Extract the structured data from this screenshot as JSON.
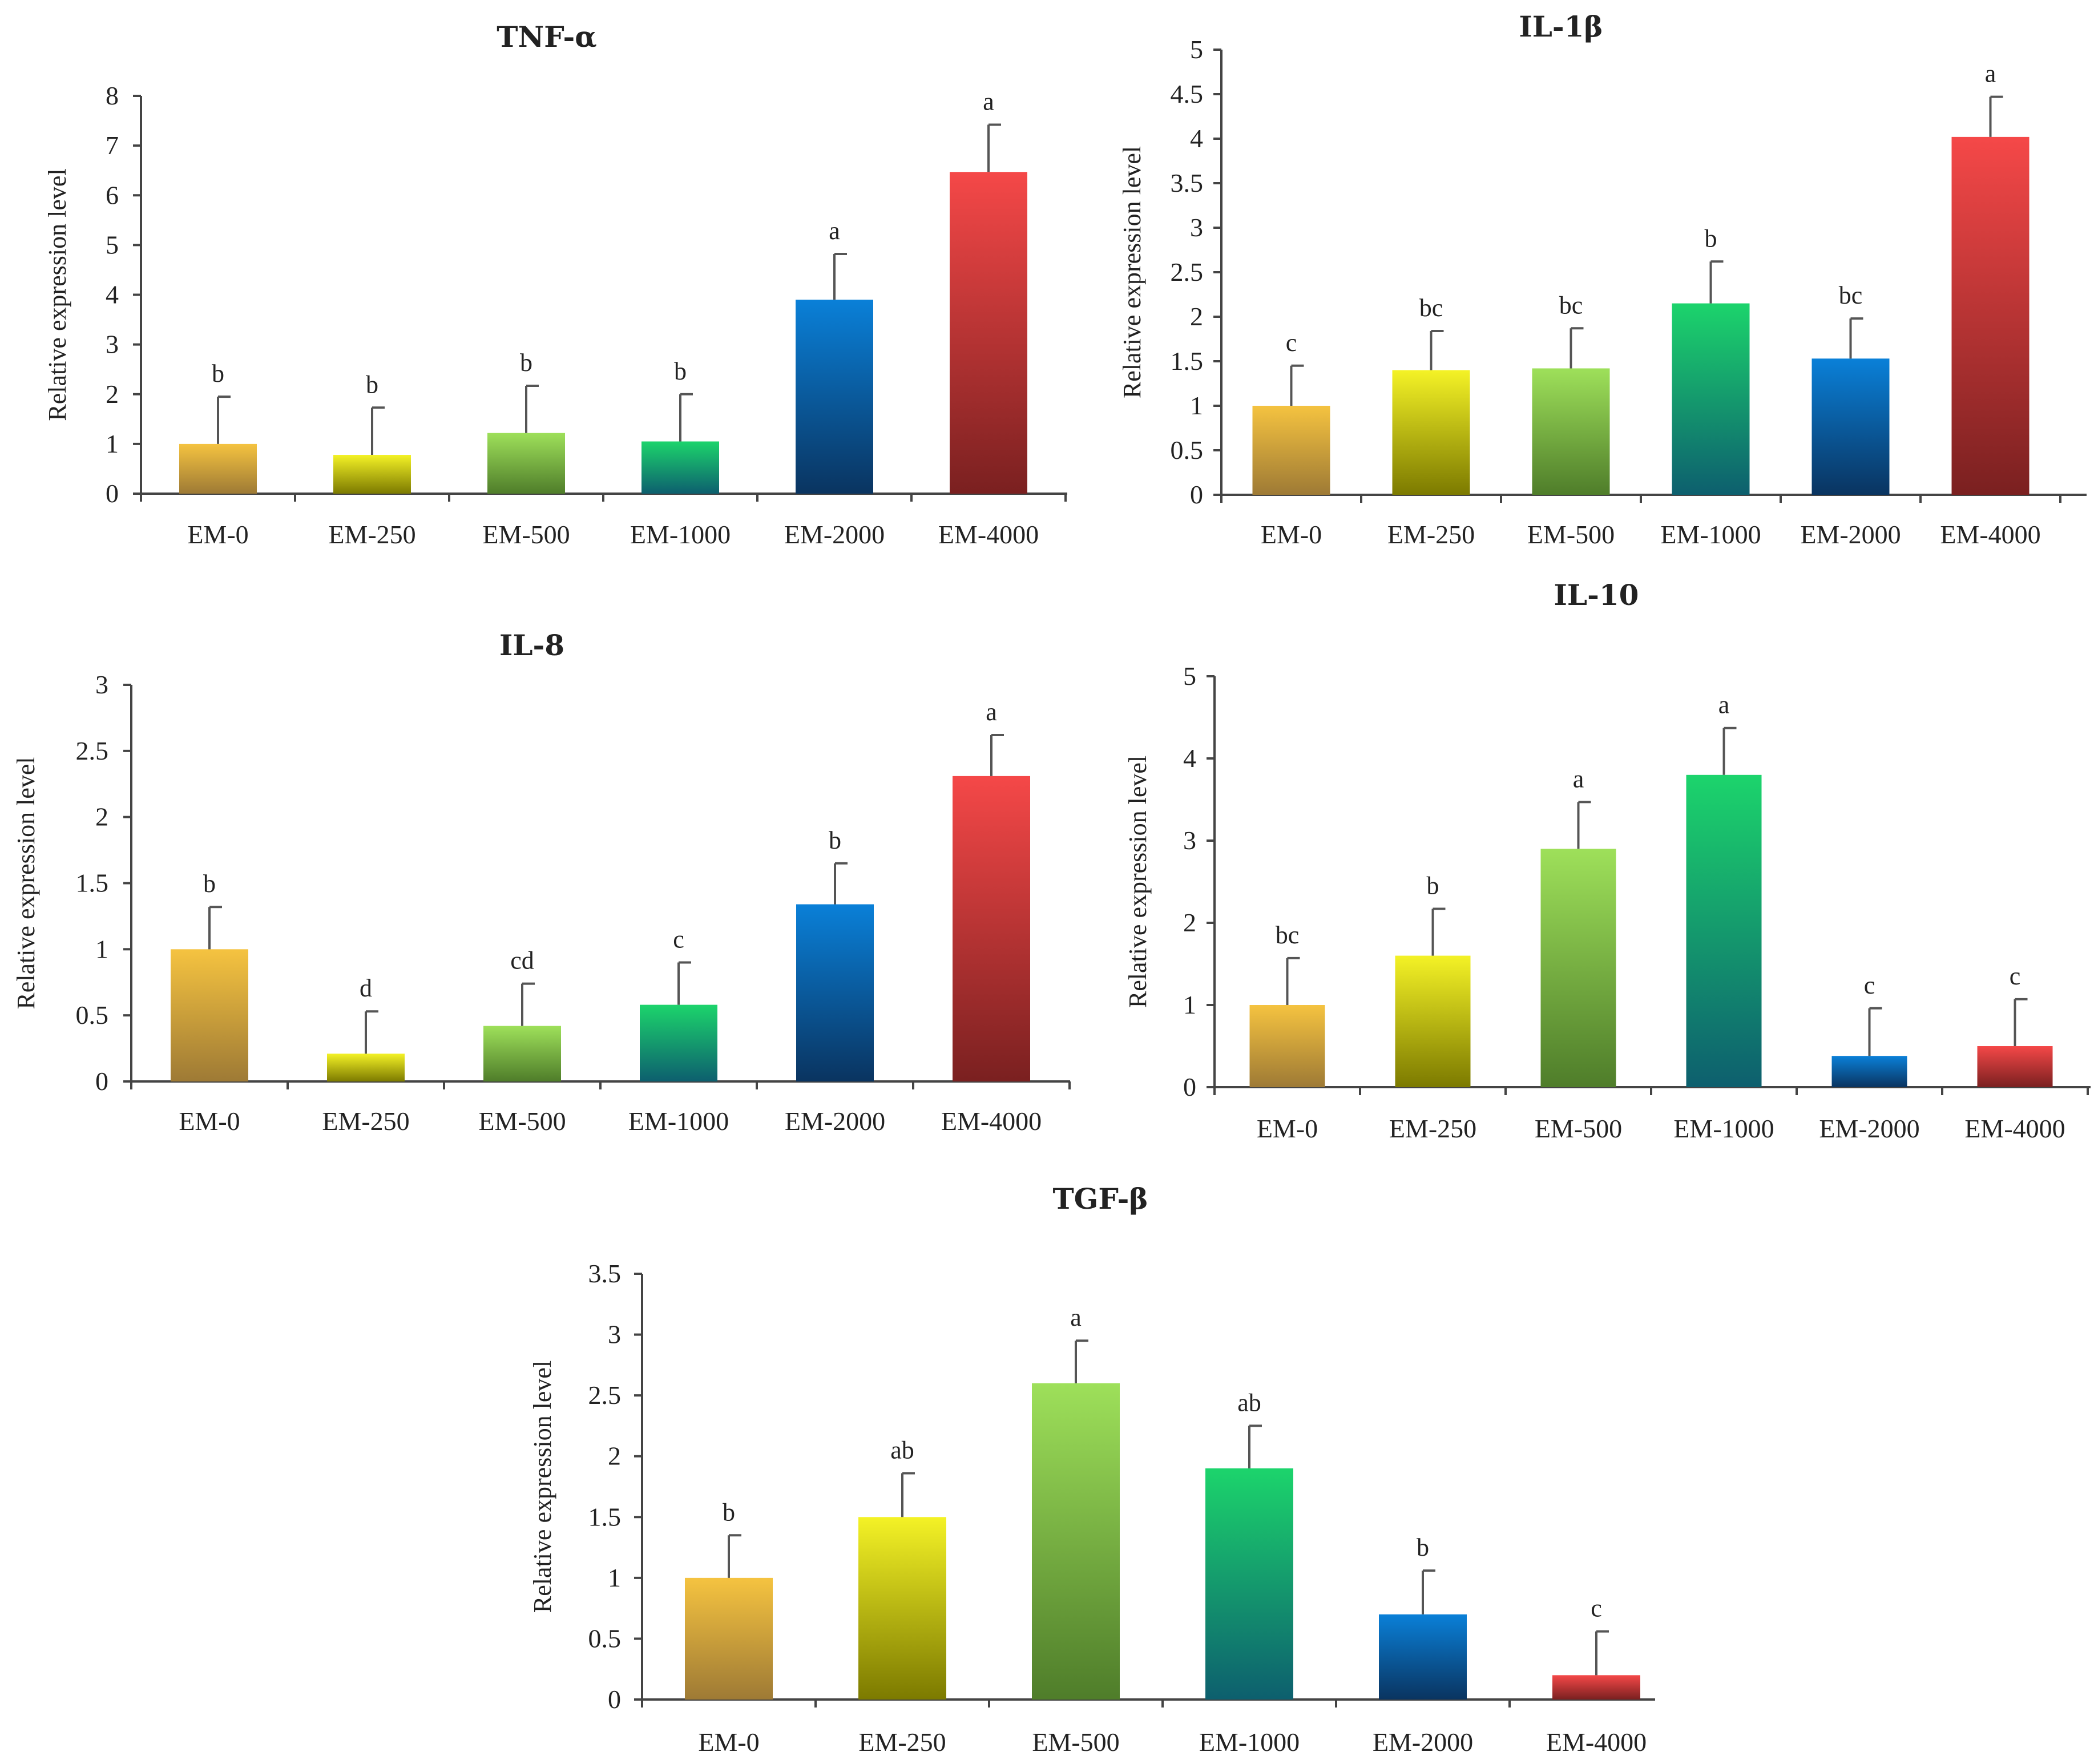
{
  "figure": {
    "bar_colors": [
      {
        "top": "#f5c340",
        "bottom": "#9e7a35"
      },
      {
        "top": "#f4f226",
        "bottom": "#7c7a00"
      },
      {
        "top": "#9ee05a",
        "bottom": "#4f7d2a"
      },
      {
        "top": "#1cd46c",
        "bottom": "#0d5f6e"
      },
      {
        "top": "#0a80d8",
        "bottom": "#0a3460"
      },
      {
        "top": "#f54848",
        "bottom": "#7a2020"
      }
    ],
    "axis_color": "#444444",
    "errorbar_color": "#555555"
  },
  "chart_data": [
    {
      "id": "tnf",
      "type": "bar",
      "title": "TNF-α",
      "ylabel": "Relative expression level",
      "categories": [
        "EM-0",
        "EM-250",
        "EM-500",
        "EM-1000",
        "EM-2000",
        "EM-4000"
      ],
      "values": [
        1.0,
        0.78,
        1.22,
        1.05,
        3.9,
        6.47
      ],
      "errors": [
        0.95,
        0.95,
        0.95,
        0.95,
        0.92,
        0.95
      ],
      "significance": [
        "b",
        "b",
        "b",
        "b",
        "a",
        "a"
      ],
      "ylim": [
        0,
        8
      ],
      "yticks": [
        "0",
        "1",
        "2",
        "3",
        "4",
        "5",
        "6",
        "7",
        "8"
      ]
    },
    {
      "id": "il1b",
      "type": "bar",
      "title": "IL-1β",
      "ylabel": "Relative expression level",
      "categories": [
        "EM-0",
        "EM-250",
        "EM-500",
        "EM-1000",
        "EM-2000",
        "EM-4000"
      ],
      "values": [
        1.0,
        1.4,
        1.42,
        2.15,
        1.53,
        4.02
      ],
      "errors": [
        0.45,
        0.44,
        0.45,
        0.47,
        0.45,
        0.45
      ],
      "significance": [
        "c",
        "bc",
        "bc",
        "b",
        "bc",
        "a"
      ],
      "ylim": [
        0,
        5
      ],
      "yticks": [
        "0",
        "0.5",
        "1",
        "1.5",
        "2",
        "2.5",
        "3",
        "3.5",
        "4",
        "4.5",
        "5"
      ]
    },
    {
      "id": "il8",
      "type": "bar",
      "title": "IL-8",
      "ylabel": "Relative expression level",
      "categories": [
        "EM-0",
        "EM-250",
        "EM-500",
        "EM-1000",
        "EM-2000",
        "EM-4000"
      ],
      "values": [
        1.0,
        0.21,
        0.42,
        0.58,
        1.34,
        2.31
      ],
      "errors": [
        0.32,
        0.32,
        0.32,
        0.32,
        0.31,
        0.31
      ],
      "significance": [
        "b",
        "d",
        "cd",
        "c",
        "b",
        "a"
      ],
      "ylim": [
        0,
        3
      ],
      "yticks": [
        "0",
        "0.5",
        "1",
        "1.5",
        "2",
        "2.5",
        "3"
      ]
    },
    {
      "id": "il10",
      "type": "bar",
      "title": "IL-10",
      "ylabel": "Relative expression level",
      "categories": [
        "EM-0",
        "EM-250",
        "EM-500",
        "EM-1000",
        "EM-2000",
        "EM-4000"
      ],
      "values": [
        1.0,
        1.6,
        2.9,
        3.8,
        0.38,
        0.5
      ],
      "errors": [
        0.57,
        0.57,
        0.57,
        0.57,
        0.58,
        0.57
      ],
      "significance": [
        "bc",
        "b",
        "a",
        "a",
        "c",
        "c"
      ],
      "ylim": [
        0,
        5
      ],
      "yticks": [
        "0",
        "1",
        "2",
        "3",
        "4",
        "5"
      ]
    },
    {
      "id": "tgfb",
      "type": "bar",
      "title": "TGF-β",
      "ylabel": "Relative expression level",
      "categories": [
        "EM-0",
        "EM-250",
        "EM-500",
        "EM-1000",
        "EM-2000",
        "EM-4000"
      ],
      "values": [
        1.0,
        1.5,
        2.6,
        1.9,
        0.7,
        0.2
      ],
      "errors": [
        0.35,
        0.36,
        0.35,
        0.35,
        0.36,
        0.36
      ],
      "significance": [
        "b",
        "ab",
        "a",
        "ab",
        "b",
        "c"
      ],
      "ylim": [
        0,
        3.5
      ],
      "yticks": [
        "0",
        "0.5",
        "1",
        "1.5",
        "2",
        "2.5",
        "3",
        "3.5"
      ]
    }
  ]
}
